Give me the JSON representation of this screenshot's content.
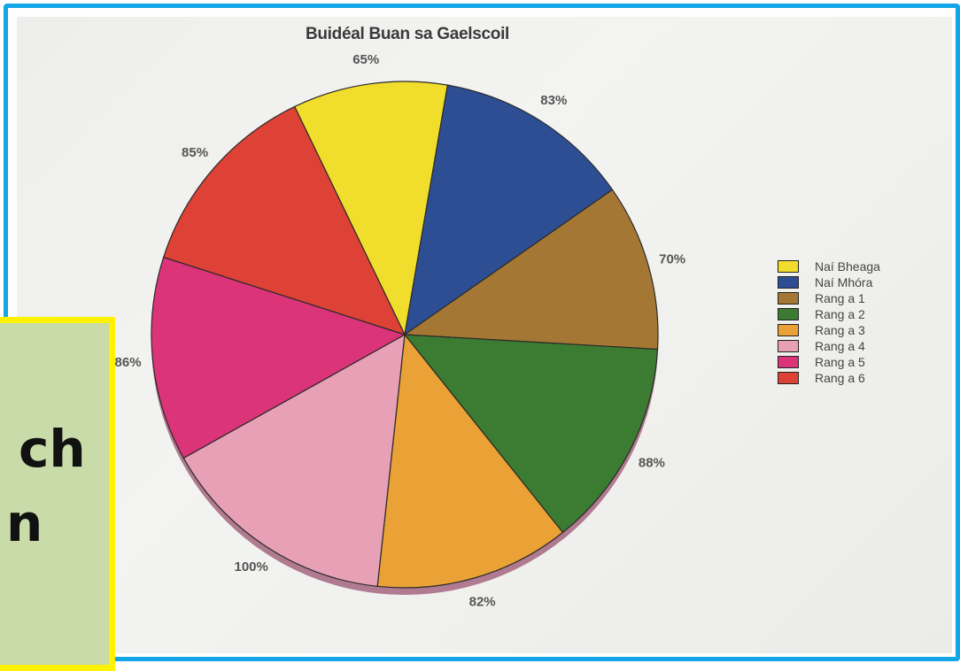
{
  "chart_data": {
    "type": "pie",
    "title": "Buidéal Buan sa Gaelscoil",
    "slices": [
      {
        "name": "Naí Bheaga",
        "label": "65%",
        "value": 65,
        "color": "#f0dd2c"
      },
      {
        "name": "Naí Mhóra",
        "label": "83%",
        "value": 83,
        "color": "#2e4e94"
      },
      {
        "name": "Rang a 1",
        "label": "70%",
        "value": 70,
        "color": "#a47834"
      },
      {
        "name": "Rang a 2",
        "label": "88%",
        "value": 88,
        "color": "#3b7c32"
      },
      {
        "name": "Rang a 3",
        "label": "82%",
        "value": 82,
        "color": "#eaa136"
      },
      {
        "name": "Rang a 4",
        "label": "100%",
        "value": 100,
        "color": "#e8a0b6"
      },
      {
        "name": "Rang a 5",
        "label": "86%",
        "value": 86,
        "color": "#dc3479"
      },
      {
        "name": "Rang a 6",
        "label": "85%",
        "value": 85,
        "color": "#de4236"
      }
    ],
    "legend_position": "right"
  },
  "overlay": {
    "line1": "ch",
    "line2": "n"
  },
  "colors": {
    "frame": "#12a6e6",
    "overlay_fill": "#c8dba8",
    "overlay_border": "#fff200"
  }
}
